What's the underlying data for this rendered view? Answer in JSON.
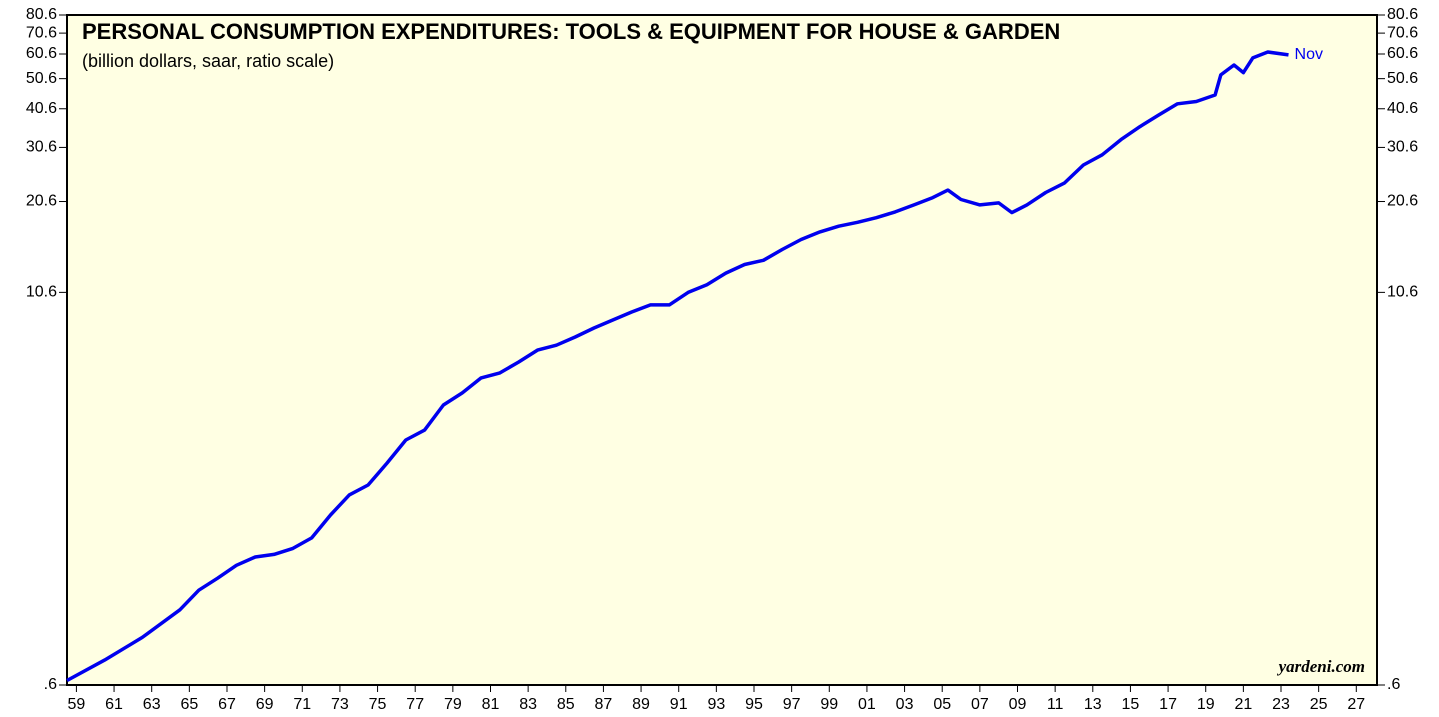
{
  "chart_data": {
    "type": "line",
    "title": "PERSONAL CONSUMPTION EXPENDITURES: TOOLS & EQUIPMENT FOR HOUSE & GARDEN",
    "subtitle": "(billion dollars, saar, ratio scale)",
    "annotations": [
      "yardeni.com"
    ],
    "log_scale": true,
    "x": [
      1959,
      1961,
      1963,
      1965,
      1966,
      1967,
      1968,
      1969,
      1970,
      1971,
      1972,
      1973,
      1974,
      1975,
      1976,
      1977,
      1978,
      1979,
      1980,
      1981,
      1982,
      1983,
      1984,
      1985,
      1986,
      1987,
      1988,
      1989,
      1990,
      1991,
      1992,
      1993,
      1994,
      1995,
      1996,
      1997,
      1998,
      1999,
      2000,
      2001,
      2002,
      2003,
      2004,
      2005,
      2005.8,
      2006.5,
      2007.5,
      2008.5,
      2009.2,
      2010,
      2011,
      2012,
      2013,
      2014,
      2015,
      2016,
      2017,
      2018,
      2019,
      2020,
      2020.3,
      2021,
      2021.5,
      2022,
      2022.8,
      2023.9
    ],
    "series": [
      {
        "name": "Nov",
        "color": "#0000ee",
        "values": [
          0.62,
          0.72,
          0.85,
          1.04,
          1.2,
          1.31,
          1.44,
          1.53,
          1.56,
          1.63,
          1.76,
          2.08,
          2.41,
          2.59,
          3.04,
          3.6,
          3.87,
          4.65,
          5.08,
          5.67,
          5.88,
          6.37,
          6.95,
          7.2,
          7.65,
          8.17,
          8.66,
          9.18,
          9.67,
          9.67,
          10.6,
          11.2,
          12.2,
          13.0,
          13.4,
          14.5,
          15.6,
          16.5,
          17.2,
          17.7,
          18.3,
          19.1,
          20.1,
          21.2,
          22.4,
          20.9,
          20.1,
          20.4,
          19.0,
          20.1,
          22.0,
          23.6,
          26.9,
          29.0,
          32.4,
          35.6,
          38.8,
          42.1,
          42.8,
          44.9,
          52.0,
          55.9,
          52.9,
          58.9,
          61.5,
          60.2
        ]
      }
    ],
    "xlim": [
      1959,
      2028.6
    ],
    "xticks": [
      {
        "value": 1959.5,
        "label": "59"
      },
      {
        "value": 1961.5,
        "label": "61"
      },
      {
        "value": 1963.5,
        "label": "63"
      },
      {
        "value": 1965.5,
        "label": "65"
      },
      {
        "value": 1967.5,
        "label": "67"
      },
      {
        "value": 1969.5,
        "label": "69"
      },
      {
        "value": 1971.5,
        "label": "71"
      },
      {
        "value": 1973.5,
        "label": "73"
      },
      {
        "value": 1975.5,
        "label": "75"
      },
      {
        "value": 1977.5,
        "label": "77"
      },
      {
        "value": 1979.5,
        "label": "79"
      },
      {
        "value": 1981.5,
        "label": "81"
      },
      {
        "value": 1983.5,
        "label": "83"
      },
      {
        "value": 1985.5,
        "label": "85"
      },
      {
        "value": 1987.5,
        "label": "87"
      },
      {
        "value": 1989.5,
        "label": "89"
      },
      {
        "value": 1991.5,
        "label": "91"
      },
      {
        "value": 1993.5,
        "label": "93"
      },
      {
        "value": 1995.5,
        "label": "95"
      },
      {
        "value": 1997.5,
        "label": "97"
      },
      {
        "value": 1999.5,
        "label": "99"
      },
      {
        "value": 2001.5,
        "label": "01"
      },
      {
        "value": 2003.5,
        "label": "03"
      },
      {
        "value": 2005.5,
        "label": "05"
      },
      {
        "value": 2007.5,
        "label": "07"
      },
      {
        "value": 2009.5,
        "label": "09"
      },
      {
        "value": 2011.5,
        "label": "11"
      },
      {
        "value": 2013.5,
        "label": "13"
      },
      {
        "value": 2015.5,
        "label": "15"
      },
      {
        "value": 2017.5,
        "label": "17"
      },
      {
        "value": 2019.5,
        "label": "19"
      },
      {
        "value": 2021.5,
        "label": "21"
      },
      {
        "value": 2023.5,
        "label": "23"
      },
      {
        "value": 2025.5,
        "label": "25"
      },
      {
        "value": 2027.5,
        "label": "27"
      }
    ],
    "ylim": [
      0.6,
      80.6
    ],
    "yticks": [
      {
        "value": 0.6,
        "label": ".6"
      },
      10.6,
      20.6,
      30.6,
      40.6,
      50.6,
      60.6,
      70.6,
      80.6
    ],
    "background": "#ffffe3"
  }
}
